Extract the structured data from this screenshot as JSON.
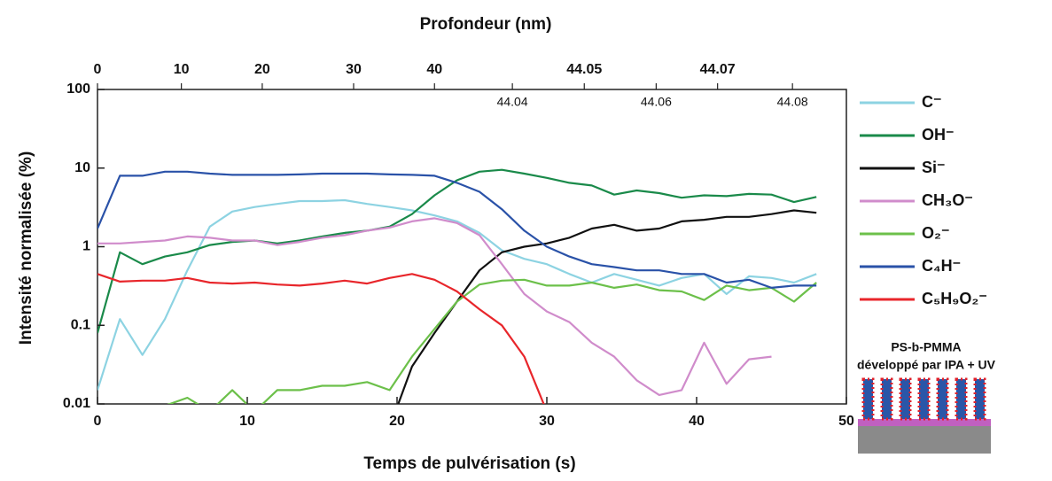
{
  "chart_data": {
    "type": "line",
    "x2_label": "Profondeur (nm)",
    "x_label": "Temps de pulvérisation (s)",
    "y_label": "Intensité normalisée (%)",
    "yscale": "log",
    "xlim": [
      0,
      50
    ],
    "xticks": [
      0,
      10,
      20,
      30,
      40,
      50
    ],
    "ylim": [
      0.01,
      100
    ],
    "yticks": [
      0.01,
      0.1,
      1,
      10,
      100
    ],
    "x2ticks": [
      0,
      10,
      20,
      30,
      40,
      44.04,
      44.05,
      44.06,
      44.07,
      44.08
    ],
    "x2ticks_at": [
      0,
      5.6,
      11,
      17.1,
      22.5,
      27.7,
      32.5,
      37.3,
      41.4,
      46.4
    ],
    "x": [
      0,
      1.5,
      3,
      4.5,
      6,
      7.5,
      9,
      10.5,
      12,
      13.5,
      15,
      16.5,
      18,
      19.5,
      21,
      22.5,
      24,
      25.5,
      27,
      28.5,
      30,
      31.5,
      33,
      34.5,
      36,
      37.5,
      39,
      40.5,
      42,
      43.5,
      45,
      46.5,
      48
    ],
    "series": [
      {
        "name": "C⁻",
        "color": "#8dd3e2",
        "values": [
          0.015,
          0.12,
          0.042,
          0.12,
          0.5,
          1.8,
          2.8,
          3.2,
          3.5,
          3.8,
          3.8,
          3.9,
          3.5,
          3.2,
          2.9,
          2.5,
          2.1,
          1.5,
          0.9,
          0.7,
          0.6,
          0.45,
          0.35,
          0.45,
          0.38,
          0.32,
          0.4,
          0.45,
          0.25,
          0.42,
          0.4,
          0.35,
          0.45
        ]
      },
      {
        "name": "OH⁻",
        "color": "#1a8a4a",
        "values": [
          0.08,
          0.85,
          0.6,
          0.75,
          0.85,
          1.05,
          1.15,
          1.2,
          1.1,
          1.2,
          1.35,
          1.5,
          1.6,
          1.8,
          2.6,
          4.5,
          7,
          9,
          9.5,
          8.5,
          7.5,
          6.5,
          6,
          4.6,
          5.2,
          4.8,
          4.2,
          4.5,
          4.4,
          4.7,
          4.6,
          3.7,
          4.3
        ]
      },
      {
        "name": "Si⁻",
        "color": "#111111",
        "values": [
          null,
          null,
          null,
          null,
          null,
          null,
          null,
          null,
          null,
          null,
          null,
          null,
          null,
          0.005,
          0.03,
          0.08,
          0.2,
          0.5,
          0.85,
          1.0,
          1.1,
          1.3,
          1.7,
          1.9,
          1.6,
          1.7,
          2.1,
          2.2,
          2.4,
          2.4,
          2.6,
          2.9,
          2.7
        ]
      },
      {
        "name": "CH₃O⁻",
        "color": "#d08ccb",
        "values": [
          1.1,
          1.1,
          1.15,
          1.2,
          1.35,
          1.3,
          1.2,
          1.2,
          1.05,
          1.15,
          1.3,
          1.4,
          1.6,
          1.75,
          2.1,
          2.3,
          2.0,
          1.4,
          0.6,
          0.25,
          0.15,
          0.11,
          0.06,
          0.04,
          0.02,
          0.013,
          0.015,
          0.06,
          0.018,
          0.037,
          0.04,
          null,
          null
        ]
      },
      {
        "name": "O₂⁻",
        "color": "#6cc04a",
        "values": [
          null,
          null,
          null,
          0.0095,
          0.012,
          0.008,
          0.015,
          0.008,
          0.015,
          0.015,
          0.017,
          0.017,
          0.019,
          0.015,
          0.04,
          0.09,
          0.2,
          0.33,
          0.37,
          0.38,
          0.32,
          0.32,
          0.35,
          0.3,
          0.33,
          0.28,
          0.27,
          0.21,
          0.32,
          0.28,
          0.3,
          0.2,
          0.35
        ]
      },
      {
        "name": "C₄H⁻",
        "color": "#2a52a8",
        "values": [
          1.7,
          8,
          8,
          9,
          9,
          8.5,
          8.2,
          8.2,
          8.2,
          8.3,
          8.5,
          8.5,
          8.5,
          8.3,
          8.2,
          8,
          6.5,
          5,
          3,
          1.6,
          1,
          0.75,
          0.6,
          0.55,
          0.5,
          0.5,
          0.45,
          0.45,
          0.35,
          0.38,
          0.3,
          0.32,
          0.32
        ]
      },
      {
        "name": "C₅H₉O₂⁻",
        "color": "#e8262b",
        "values": [
          0.45,
          0.36,
          0.37,
          0.37,
          0.4,
          0.35,
          0.34,
          0.35,
          0.33,
          0.32,
          0.34,
          0.37,
          0.34,
          0.4,
          0.45,
          0.38,
          0.27,
          0.16,
          0.1,
          0.04,
          0.008,
          null,
          null,
          null,
          null,
          null,
          null,
          null,
          null,
          null,
          null,
          null,
          null
        ]
      }
    ]
  },
  "inset": {
    "title": "PS-b-PMMA",
    "subtitle": "développé par IPA + UV"
  }
}
